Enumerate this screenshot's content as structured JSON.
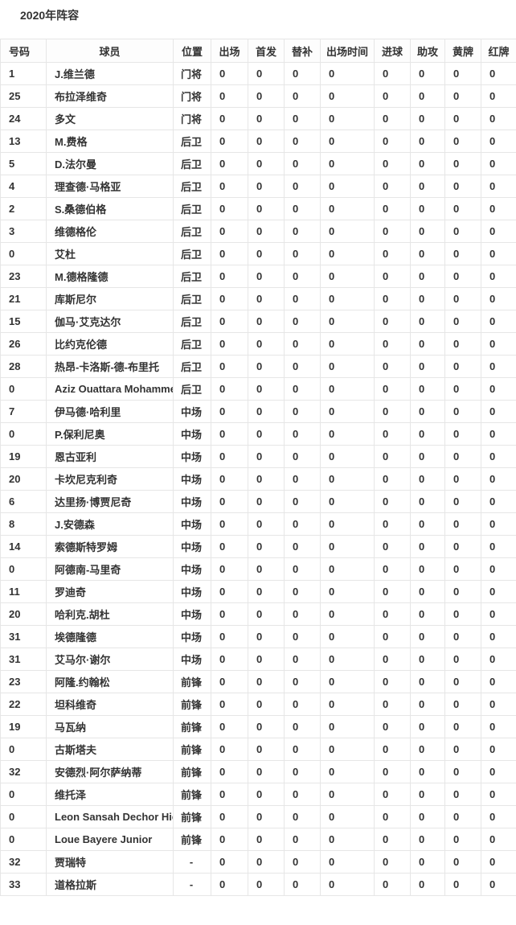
{
  "page": {
    "title": "2020年阵容"
  },
  "table": {
    "columns": [
      {
        "key": "number",
        "label": "号码"
      },
      {
        "key": "player",
        "label": "球员"
      },
      {
        "key": "position",
        "label": "位置"
      },
      {
        "key": "appearances",
        "label": "出场"
      },
      {
        "key": "starts",
        "label": "首发"
      },
      {
        "key": "substitute",
        "label": "替补"
      },
      {
        "key": "minutes",
        "label": "出场时间"
      },
      {
        "key": "goals",
        "label": "进球"
      },
      {
        "key": "assists",
        "label": "助攻"
      },
      {
        "key": "yellow-cards",
        "label": "黄牌"
      },
      {
        "key": "red-cards",
        "label": "红牌"
      }
    ],
    "rows": [
      [
        "1",
        "J.维兰德",
        "门将",
        "0",
        "0",
        "0",
        "0",
        "0",
        "0",
        "0",
        "0"
      ],
      [
        "25",
        "布拉泽维奇",
        "门将",
        "0",
        "0",
        "0",
        "0",
        "0",
        "0",
        "0",
        "0"
      ],
      [
        "24",
        "多文",
        "门将",
        "0",
        "0",
        "0",
        "0",
        "0",
        "0",
        "0",
        "0"
      ],
      [
        "13",
        "M.费格",
        "后卫",
        "0",
        "0",
        "0",
        "0",
        "0",
        "0",
        "0",
        "0"
      ],
      [
        "5",
        "D.法尔曼",
        "后卫",
        "0",
        "0",
        "0",
        "0",
        "0",
        "0",
        "0",
        "0"
      ],
      [
        "4",
        "理查德·马格亚",
        "后卫",
        "0",
        "0",
        "0",
        "0",
        "0",
        "0",
        "0",
        "0"
      ],
      [
        "2",
        "S.桑德伯格",
        "后卫",
        "0",
        "0",
        "0",
        "0",
        "0",
        "0",
        "0",
        "0"
      ],
      [
        "3",
        "维德格伦",
        "后卫",
        "0",
        "0",
        "0",
        "0",
        "0",
        "0",
        "0",
        "0"
      ],
      [
        "0",
        "艾杜",
        "后卫",
        "0",
        "0",
        "0",
        "0",
        "0",
        "0",
        "0",
        "0"
      ],
      [
        "23",
        "M.德格隆德",
        "后卫",
        "0",
        "0",
        "0",
        "0",
        "0",
        "0",
        "0",
        "0"
      ],
      [
        "21",
        "库斯尼尔",
        "后卫",
        "0",
        "0",
        "0",
        "0",
        "0",
        "0",
        "0",
        "0"
      ],
      [
        "15",
        "伽马·艾克达尔",
        "后卫",
        "0",
        "0",
        "0",
        "0",
        "0",
        "0",
        "0",
        "0"
      ],
      [
        "26",
        "比约克伦德",
        "后卫",
        "0",
        "0",
        "0",
        "0",
        "0",
        "0",
        "0",
        "0"
      ],
      [
        "28",
        "热昂-卡洛斯-德-布里托",
        "后卫",
        "0",
        "0",
        "0",
        "0",
        "0",
        "0",
        "0",
        "0"
      ],
      [
        "0",
        "Aziz Ouattara Mohammed",
        "后卫",
        "0",
        "0",
        "0",
        "0",
        "0",
        "0",
        "0",
        "0"
      ],
      [
        "7",
        "伊马德·哈利里",
        "中场",
        "0",
        "0",
        "0",
        "0",
        "0",
        "0",
        "0",
        "0"
      ],
      [
        "0",
        "P.保利尼奥",
        "中场",
        "0",
        "0",
        "0",
        "0",
        "0",
        "0",
        "0",
        "0"
      ],
      [
        "19",
        "恩古亚利",
        "中场",
        "0",
        "0",
        "0",
        "0",
        "0",
        "0",
        "0",
        "0"
      ],
      [
        "20",
        "卡坎尼克利奇",
        "中场",
        "0",
        "0",
        "0",
        "0",
        "0",
        "0",
        "0",
        "0"
      ],
      [
        "6",
        "达里扬·博贾尼奇",
        "中场",
        "0",
        "0",
        "0",
        "0",
        "0",
        "0",
        "0",
        "0"
      ],
      [
        "8",
        "J.安德森",
        "中场",
        "0",
        "0",
        "0",
        "0",
        "0",
        "0",
        "0",
        "0"
      ],
      [
        "14",
        "索德斯特罗姆",
        "中场",
        "0",
        "0",
        "0",
        "0",
        "0",
        "0",
        "0",
        "0"
      ],
      [
        "0",
        "阿德南-马里奇",
        "中场",
        "0",
        "0",
        "0",
        "0",
        "0",
        "0",
        "0",
        "0"
      ],
      [
        "11",
        "罗迪奇",
        "中场",
        "0",
        "0",
        "0",
        "0",
        "0",
        "0",
        "0",
        "0"
      ],
      [
        "20",
        "哈利克.胡杜",
        "中场",
        "0",
        "0",
        "0",
        "0",
        "0",
        "0",
        "0",
        "0"
      ],
      [
        "31",
        "埃德隆德",
        "中场",
        "0",
        "0",
        "0",
        "0",
        "0",
        "0",
        "0",
        "0"
      ],
      [
        "31",
        "艾马尔·谢尔",
        "中场",
        "0",
        "0",
        "0",
        "0",
        "0",
        "0",
        "0",
        "0"
      ],
      [
        "23",
        "阿隆.约翰松",
        "前锋",
        "0",
        "0",
        "0",
        "0",
        "0",
        "0",
        "0",
        "0"
      ],
      [
        "22",
        "坦科维奇",
        "前锋",
        "0",
        "0",
        "0",
        "0",
        "0",
        "0",
        "0",
        "0"
      ],
      [
        "19",
        "马瓦纳",
        "前锋",
        "0",
        "0",
        "0",
        "0",
        "0",
        "0",
        "0",
        "0"
      ],
      [
        "0",
        "古斯塔夫",
        "前锋",
        "0",
        "0",
        "0",
        "0",
        "0",
        "0",
        "0",
        "0"
      ],
      [
        "32",
        "安德烈·阿尔萨纳蒂",
        "前锋",
        "0",
        "0",
        "0",
        "0",
        "0",
        "0",
        "0",
        "0"
      ],
      [
        "0",
        "维托泽",
        "前锋",
        "0",
        "0",
        "0",
        "0",
        "0",
        "0",
        "0",
        "0"
      ],
      [
        "0",
        "Leon Sansah Dechor Hien",
        "前锋",
        "0",
        "0",
        "0",
        "0",
        "0",
        "0",
        "0",
        "0"
      ],
      [
        "0",
        "Loue Bayere Junior",
        "前锋",
        "0",
        "0",
        "0",
        "0",
        "0",
        "0",
        "0",
        "0"
      ],
      [
        "32",
        "贾瑞特",
        "-",
        "0",
        "0",
        "0",
        "0",
        "0",
        "0",
        "0",
        "0"
      ],
      [
        "33",
        "道格拉斯",
        "-",
        "0",
        "0",
        "0",
        "0",
        "0",
        "0",
        "0",
        "0"
      ]
    ]
  }
}
